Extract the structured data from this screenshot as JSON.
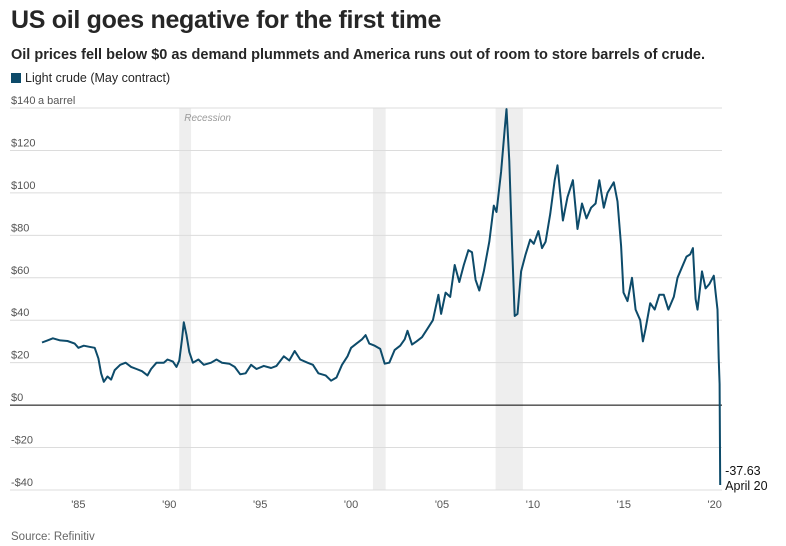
{
  "title": "US oil goes negative for the first time",
  "subtitle": "Oil prices fell below $0 as demand plummets and America runs out of room to store barrels of crude.",
  "source": "Source: Refinitiv",
  "legend": {
    "label": "Light crude (May contract)",
    "color": "#0d4b6a"
  },
  "chart_data": {
    "type": "line",
    "title": "US oil goes negative for the first time",
    "ylabel": "a barrel",
    "ylim": [
      -40,
      140
    ],
    "xlim": [
      1983.0,
      2020.4
    ],
    "y_ticks": [
      {
        "value": 140,
        "label": "$140"
      },
      {
        "value": 120,
        "label": "$120"
      },
      {
        "value": 100,
        "label": "$100"
      },
      {
        "value": 80,
        "label": "$80"
      },
      {
        "value": 60,
        "label": "$60"
      },
      {
        "value": 40,
        "label": "$40"
      },
      {
        "value": 20,
        "label": "$20"
      },
      {
        "value": 0,
        "label": "$0"
      },
      {
        "value": -20,
        "label": "-$20"
      },
      {
        "value": -40,
        "label": "-$40"
      }
    ],
    "y_unit_label": "a barrel",
    "x_ticks": [
      {
        "value": 1985,
        "label": "'85"
      },
      {
        "value": 1990,
        "label": "'90"
      },
      {
        "value": 1995,
        "label": "'95"
      },
      {
        "value": 2000,
        "label": "'00"
      },
      {
        "value": 2005,
        "label": "'05"
      },
      {
        "value": 2010,
        "label": "'10"
      },
      {
        "value": 2015,
        "label": "'15"
      },
      {
        "value": 2020,
        "label": "'20"
      }
    ],
    "grid": true,
    "recessions": [
      {
        "start": 1990.55,
        "end": 1991.2,
        "label": "Recession"
      },
      {
        "start": 2001.2,
        "end": 2001.9,
        "label": ""
      },
      {
        "start": 2007.95,
        "end": 2009.45,
        "label": ""
      }
    ],
    "annotation": {
      "value": "-37.63",
      "date": "April 20"
    },
    "series": [
      {
        "name": "Light crude (May contract)",
        "color": "#0d4b6a",
        "points": [
          [
            1983.0,
            29.5
          ],
          [
            1983.3,
            30.5
          ],
          [
            1983.6,
            31.5
          ],
          [
            1984.0,
            30.5
          ],
          [
            1984.4,
            30.2
          ],
          [
            1984.8,
            29.0
          ],
          [
            1985.0,
            27.0
          ],
          [
            1985.3,
            28.0
          ],
          [
            1985.6,
            27.5
          ],
          [
            1985.9,
            27.0
          ],
          [
            1986.1,
            22.0
          ],
          [
            1986.25,
            15.0
          ],
          [
            1986.4,
            11.0
          ],
          [
            1986.6,
            13.5
          ],
          [
            1986.8,
            12.0
          ],
          [
            1987.0,
            16.5
          ],
          [
            1987.3,
            19.0
          ],
          [
            1987.6,
            20.0
          ],
          [
            1987.9,
            18.0
          ],
          [
            1988.2,
            17.0
          ],
          [
            1988.5,
            16.0
          ],
          [
            1988.8,
            14.0
          ],
          [
            1989.0,
            17.0
          ],
          [
            1989.3,
            20.0
          ],
          [
            1989.7,
            20.0
          ],
          [
            1989.9,
            21.5
          ],
          [
            1990.2,
            20.5
          ],
          [
            1990.4,
            18.0
          ],
          [
            1990.55,
            21.0
          ],
          [
            1990.7,
            31.0
          ],
          [
            1990.8,
            39.0
          ],
          [
            1990.95,
            33.0
          ],
          [
            1991.1,
            25.0
          ],
          [
            1991.3,
            20.0
          ],
          [
            1991.6,
            21.5
          ],
          [
            1991.9,
            19.0
          ],
          [
            1992.3,
            20.0
          ],
          [
            1992.6,
            21.5
          ],
          [
            1992.9,
            20.0
          ],
          [
            1993.3,
            19.5
          ],
          [
            1993.6,
            18.0
          ],
          [
            1993.9,
            14.5
          ],
          [
            1994.2,
            15.0
          ],
          [
            1994.5,
            19.0
          ],
          [
            1994.8,
            17.0
          ],
          [
            1995.2,
            18.5
          ],
          [
            1995.6,
            17.5
          ],
          [
            1995.9,
            18.5
          ],
          [
            1996.3,
            23.0
          ],
          [
            1996.6,
            21.0
          ],
          [
            1996.9,
            25.5
          ],
          [
            1997.2,
            21.5
          ],
          [
            1997.6,
            20.0
          ],
          [
            1997.9,
            19.0
          ],
          [
            1998.2,
            15.0
          ],
          [
            1998.6,
            14.0
          ],
          [
            1998.9,
            11.5
          ],
          [
            1999.2,
            13.0
          ],
          [
            1999.5,
            19.0
          ],
          [
            1999.8,
            23.0
          ],
          [
            2000.0,
            27.0
          ],
          [
            2000.3,
            29.0
          ],
          [
            2000.6,
            31.0
          ],
          [
            2000.8,
            33.0
          ],
          [
            2001.0,
            29.0
          ],
          [
            2001.3,
            28.0
          ],
          [
            2001.6,
            26.5
          ],
          [
            2001.85,
            19.5
          ],
          [
            2002.1,
            20.0
          ],
          [
            2002.4,
            26.0
          ],
          [
            2002.7,
            28.0
          ],
          [
            2002.95,
            31.0
          ],
          [
            2003.1,
            35.0
          ],
          [
            2003.35,
            28.5
          ],
          [
            2003.6,
            30.0
          ],
          [
            2003.9,
            32.0
          ],
          [
            2004.2,
            36.0
          ],
          [
            2004.5,
            40.0
          ],
          [
            2004.8,
            52.0
          ],
          [
            2004.95,
            43.0
          ],
          [
            2005.2,
            53.0
          ],
          [
            2005.45,
            51.0
          ],
          [
            2005.7,
            66.0
          ],
          [
            2005.95,
            58.0
          ],
          [
            2006.2,
            66.0
          ],
          [
            2006.45,
            73.0
          ],
          [
            2006.65,
            72.0
          ],
          [
            2006.85,
            59.0
          ],
          [
            2007.05,
            54.0
          ],
          [
            2007.3,
            63.0
          ],
          [
            2007.6,
            77.0
          ],
          [
            2007.85,
            94.0
          ],
          [
            2008.0,
            91.0
          ],
          [
            2008.25,
            110.0
          ],
          [
            2008.45,
            130.0
          ],
          [
            2008.55,
            139.5
          ],
          [
            2008.7,
            115.0
          ],
          [
            2008.85,
            76.0
          ],
          [
            2009.0,
            42.0
          ],
          [
            2009.15,
            43.0
          ],
          [
            2009.35,
            63.0
          ],
          [
            2009.6,
            71.0
          ],
          [
            2009.85,
            78.0
          ],
          [
            2010.05,
            76.0
          ],
          [
            2010.3,
            82.0
          ],
          [
            2010.5,
            74.0
          ],
          [
            2010.7,
            77.0
          ],
          [
            2010.95,
            90.0
          ],
          [
            2011.2,
            106.0
          ],
          [
            2011.35,
            113.0
          ],
          [
            2011.65,
            87.0
          ],
          [
            2011.9,
            98.0
          ],
          [
            2012.2,
            106.0
          ],
          [
            2012.45,
            83.0
          ],
          [
            2012.7,
            95.0
          ],
          [
            2012.95,
            88.0
          ],
          [
            2013.2,
            93.0
          ],
          [
            2013.45,
            95.0
          ],
          [
            2013.65,
            106.0
          ],
          [
            2013.9,
            93.0
          ],
          [
            2014.1,
            100.0
          ],
          [
            2014.45,
            105.0
          ],
          [
            2014.65,
            96.0
          ],
          [
            2014.85,
            75.0
          ],
          [
            2014.98,
            53.0
          ],
          [
            2015.2,
            49.0
          ],
          [
            2015.45,
            60.0
          ],
          [
            2015.65,
            45.0
          ],
          [
            2015.9,
            40.0
          ],
          [
            2016.05,
            30.0
          ],
          [
            2016.2,
            36.0
          ],
          [
            2016.45,
            48.0
          ],
          [
            2016.7,
            45.0
          ],
          [
            2016.95,
            52.0
          ],
          [
            2017.2,
            52.0
          ],
          [
            2017.45,
            45.0
          ],
          [
            2017.75,
            51.0
          ],
          [
            2017.95,
            60.0
          ],
          [
            2018.2,
            65.0
          ],
          [
            2018.45,
            70.0
          ],
          [
            2018.65,
            71.0
          ],
          [
            2018.8,
            74.0
          ],
          [
            2018.95,
            50.0
          ],
          [
            2019.05,
            45.0
          ],
          [
            2019.3,
            63.0
          ],
          [
            2019.5,
            55.0
          ],
          [
            2019.7,
            57.0
          ],
          [
            2019.95,
            61.0
          ],
          [
            2020.05,
            53.0
          ],
          [
            2020.15,
            45.0
          ],
          [
            2020.22,
            22.0
          ],
          [
            2020.27,
            10.0
          ],
          [
            2020.3,
            -37.63
          ]
        ]
      }
    ]
  }
}
